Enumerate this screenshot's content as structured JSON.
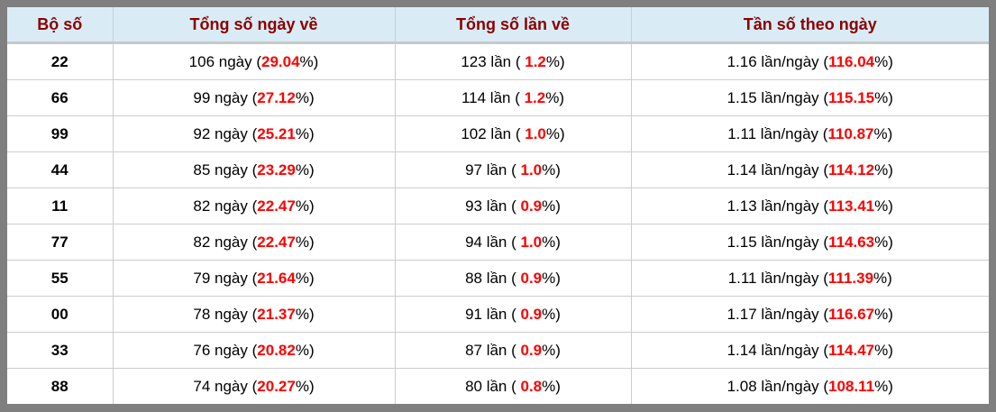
{
  "colors": {
    "header_background": "#d9ecf6",
    "header_text": "#8b0000",
    "highlight_percent": "#ff0000",
    "outer_border": "#7f7f7f",
    "grid_line": "#cccccc",
    "body_text": "#000000"
  },
  "table": {
    "headers": [
      "Bộ số",
      "Tổng số ngày về",
      "Tổng số lần về",
      "Tần số theo ngày"
    ],
    "rows": [
      {
        "pair": "22",
        "days": {
          "pre": "106 ngày (",
          "red": "29.04",
          "post": "%)"
        },
        "times": {
          "pre": "123 lần ( ",
          "red": "1.2",
          "post": "%)"
        },
        "freq": {
          "pre": "1.16 lần/ngày (",
          "red": "116.04",
          "post": "%)"
        }
      },
      {
        "pair": "66",
        "days": {
          "pre": "99 ngày (",
          "red": "27.12",
          "post": "%)"
        },
        "times": {
          "pre": "114 lần ( ",
          "red": "1.2",
          "post": "%)"
        },
        "freq": {
          "pre": "1.15 lần/ngày (",
          "red": "115.15",
          "post": "%)"
        }
      },
      {
        "pair": "99",
        "days": {
          "pre": "92 ngày (",
          "red": "25.21",
          "post": "%)"
        },
        "times": {
          "pre": "102 lần ( ",
          "red": "1.0",
          "post": "%)"
        },
        "freq": {
          "pre": "1.11 lần/ngày (",
          "red": "110.87",
          "post": "%)"
        }
      },
      {
        "pair": "44",
        "days": {
          "pre": "85 ngày (",
          "red": "23.29",
          "post": "%)"
        },
        "times": {
          "pre": "97 lần ( ",
          "red": "1.0",
          "post": "%)"
        },
        "freq": {
          "pre": "1.14 lần/ngày (",
          "red": "114.12",
          "post": "%)"
        }
      },
      {
        "pair": "11",
        "days": {
          "pre": "82 ngày (",
          "red": "22.47",
          "post": "%)"
        },
        "times": {
          "pre": "93 lần ( ",
          "red": "0.9",
          "post": "%)"
        },
        "freq": {
          "pre": "1.13 lần/ngày (",
          "red": "113.41",
          "post": "%)"
        }
      },
      {
        "pair": "77",
        "days": {
          "pre": "82 ngày (",
          "red": "22.47",
          "post": "%)"
        },
        "times": {
          "pre": "94 lần ( ",
          "red": "1.0",
          "post": "%)"
        },
        "freq": {
          "pre": "1.15 lần/ngày (",
          "red": "114.63",
          "post": "%)"
        }
      },
      {
        "pair": "55",
        "days": {
          "pre": "79 ngày (",
          "red": "21.64",
          "post": "%)"
        },
        "times": {
          "pre": "88 lần ( ",
          "red": "0.9",
          "post": "%)"
        },
        "freq": {
          "pre": "1.11 lần/ngày (",
          "red": "111.39",
          "post": "%)"
        }
      },
      {
        "pair": "00",
        "days": {
          "pre": "78 ngày (",
          "red": "21.37",
          "post": "%)"
        },
        "times": {
          "pre": "91 lần ( ",
          "red": "0.9",
          "post": "%)"
        },
        "freq": {
          "pre": "1.17 lần/ngày (",
          "red": "116.67",
          "post": "%)"
        }
      },
      {
        "pair": "33",
        "days": {
          "pre": "76 ngày (",
          "red": "20.82",
          "post": "%)"
        },
        "times": {
          "pre": "87 lần ( ",
          "red": "0.9",
          "post": "%)"
        },
        "freq": {
          "pre": "1.14 lần/ngày (",
          "red": "114.47",
          "post": "%)"
        }
      },
      {
        "pair": "88",
        "days": {
          "pre": "74 ngày (",
          "red": "20.27",
          "post": "%)"
        },
        "times": {
          "pre": "80 lần ( ",
          "red": "0.8",
          "post": "%)"
        },
        "freq": {
          "pre": "1.08 lần/ngày (",
          "red": "108.11",
          "post": "%)"
        }
      }
    ]
  },
  "chart_data": {
    "type": "table",
    "columns": [
      "Bộ số",
      "Tổng số ngày về",
      "Tổng số lần về",
      "Tần số theo ngày"
    ],
    "rows": [
      {
        "bo_so": "22",
        "ngay": 106,
        "ngay_pct": 29.04,
        "lan": 123,
        "lan_pct": 1.2,
        "lan_per_ngay": 1.16,
        "tan_so_pct": 116.04
      },
      {
        "bo_so": "66",
        "ngay": 99,
        "ngay_pct": 27.12,
        "lan": 114,
        "lan_pct": 1.2,
        "lan_per_ngay": 1.15,
        "tan_so_pct": 115.15
      },
      {
        "bo_so": "99",
        "ngay": 92,
        "ngay_pct": 25.21,
        "lan": 102,
        "lan_pct": 1.0,
        "lan_per_ngay": 1.11,
        "tan_so_pct": 110.87
      },
      {
        "bo_so": "44",
        "ngay": 85,
        "ngay_pct": 23.29,
        "lan": 97,
        "lan_pct": 1.0,
        "lan_per_ngay": 1.14,
        "tan_so_pct": 114.12
      },
      {
        "bo_so": "11",
        "ngay": 82,
        "ngay_pct": 22.47,
        "lan": 93,
        "lan_pct": 0.9,
        "lan_per_ngay": 1.13,
        "tan_so_pct": 113.41
      },
      {
        "bo_so": "77",
        "ngay": 82,
        "ngay_pct": 22.47,
        "lan": 94,
        "lan_pct": 1.0,
        "lan_per_ngay": 1.15,
        "tan_so_pct": 114.63
      },
      {
        "bo_so": "55",
        "ngay": 79,
        "ngay_pct": 21.64,
        "lan": 88,
        "lan_pct": 0.9,
        "lan_per_ngay": 1.11,
        "tan_so_pct": 111.39
      },
      {
        "bo_so": "00",
        "ngay": 78,
        "ngay_pct": 21.37,
        "lan": 91,
        "lan_pct": 0.9,
        "lan_per_ngay": 1.17,
        "tan_so_pct": 116.67
      },
      {
        "bo_so": "33",
        "ngay": 76,
        "ngay_pct": 20.82,
        "lan": 87,
        "lan_pct": 0.9,
        "lan_per_ngay": 1.14,
        "tan_so_pct": 114.47
      },
      {
        "bo_so": "88",
        "ngay": 74,
        "ngay_pct": 20.27,
        "lan": 80,
        "lan_pct": 0.8,
        "lan_per_ngay": 1.08,
        "tan_so_pct": 108.11
      }
    ]
  }
}
